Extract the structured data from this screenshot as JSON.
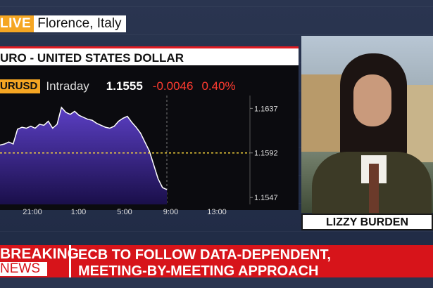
{
  "live": {
    "tag": "LIVE",
    "location": "Florence, Italy"
  },
  "chart": {
    "title": "URO - UNITED STATES DOLLAR",
    "ticker": "URUSD",
    "interval": "Intraday",
    "last": "1.1555",
    "change": "-0.0046",
    "change_pct": "0.40%"
  },
  "chart_data": {
    "type": "area",
    "x": [
      0,
      1,
      2,
      3,
      4,
      5,
      6,
      7,
      8,
      9,
      10,
      11,
      12,
      13,
      14,
      15,
      16,
      17,
      18,
      19,
      20,
      21,
      22,
      23,
      24,
      25,
      26,
      27,
      28,
      29,
      30,
      31,
      32,
      33,
      34,
      35,
      36,
      37,
      38
    ],
    "y": [
      1.16,
      1.1601,
      1.1603,
      1.1601,
      1.1616,
      1.1618,
      1.1617,
      1.1619,
      1.1617,
      1.1621,
      1.162,
      1.1624,
      1.1617,
      1.1621,
      1.1638,
      1.1633,
      1.1631,
      1.1634,
      1.163,
      1.1628,
      1.1626,
      1.1625,
      1.1622,
      1.162,
      1.1618,
      1.1617,
      1.1619,
      1.1624,
      1.1627,
      1.1629,
      1.1623,
      1.1618,
      1.1612,
      1.1603,
      1.1594,
      1.158,
      1.1566,
      1.1557,
      1.1555
    ],
    "xticks": [
      "21:00",
      "1:00",
      "5:00",
      "9:00",
      "13:00"
    ],
    "yticks": [
      "1.1637",
      "1.1592",
      "1.1547"
    ],
    "reference_line": 1.1592,
    "ylim": [
      1.154,
      1.165
    ],
    "colors": {
      "line": "#ffffff",
      "fill_top": "#5b3fc4",
      "fill_bottom": "#1a0f4a",
      "ref": "#f5d23a"
    }
  },
  "anchor": {
    "name": "LIZZY BURDEN"
  },
  "breaking": {
    "label_top": "BREAKING",
    "label_bottom": "NEWS",
    "headline_line1": "ECB TO FOLLOW DATA-DEPENDENT,",
    "headline_line2": "MEETING-BY-MEETING APPROACH"
  }
}
